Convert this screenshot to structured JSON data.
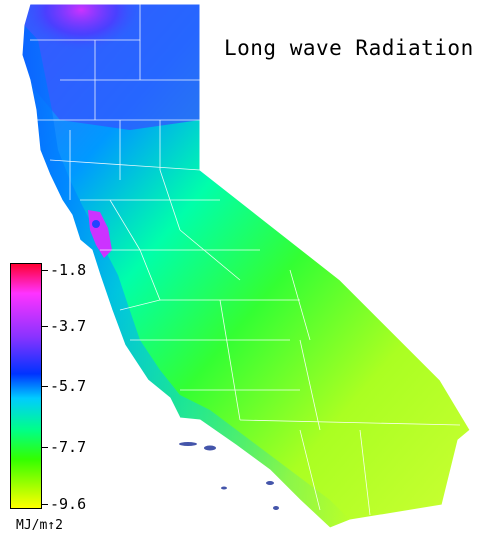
{
  "title": "Long wave Radiation",
  "legend": {
    "ticks": [
      "-1.8",
      "-3.7",
      "-5.7",
      "-7.7",
      "-9.6"
    ],
    "unit": "MJ/m↑2",
    "colors": [
      "#ff0033",
      "#ff33ff",
      "#8833ff",
      "#0033ff",
      "#00ccff",
      "#00ff88",
      "#33ff00",
      "#ccff00",
      "#ffff00"
    ]
  },
  "map": {
    "region": "California",
    "land_colors": {
      "north": "#3355ff",
      "northwest_coast": "#aa33ff",
      "central_coast": "#00ddcc",
      "valley": "#33ff66",
      "desert": "#ccff22",
      "south_coast": "#00aaff",
      "border": "#ffffff"
    }
  }
}
